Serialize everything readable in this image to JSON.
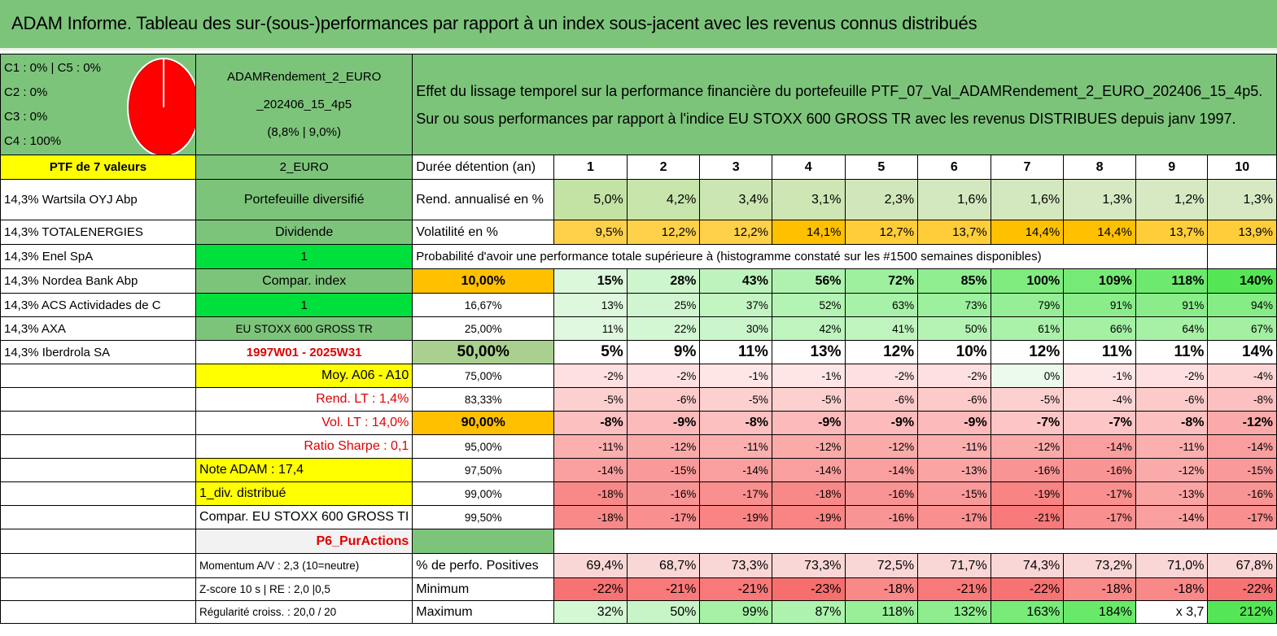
{
  "title": "ADAM Informe. Tableau des sur-(sous-)performances par rapport à un index sous-jacent avec les revenus connus distribués",
  "pie_legend": [
    "C1 : 0% | C5 : 0%",
    "C2 : 0%",
    "C3 : 0%",
    "C4 : 100%"
  ],
  "fund": {
    "name_line1": "ADAMRendement_2_EURO",
    "name_line2": "_202406_15_4p5",
    "name_line3": "(8,8% | 9,0%)"
  },
  "description": {
    "line1": "Effet du lissage temporel sur la performance financière du portefeuille PTF_07_Val_ADAMRendement_2_EURO_202406_15_4p5.",
    "line2": "Sur ou sous performances par rapport à l'indice EU STOXX 600 GROSS TR avec les revenus DISTRIBUES depuis janv 1997."
  },
  "ptf_header": "PTF de 7 valeurs",
  "currency": "2_EURO",
  "holdings": [
    "14,3% Wartsila OYJ Abp",
    "14,3% TOTALENERGIES",
    "14,3% Enel SpA",
    "14,3% Nordea Bank Abp",
    "14,3% ACS Actividades de C",
    "14,3% AXA",
    "14,3% Iberdrola SA"
  ],
  "col2": {
    "portefeuille": "Portefeuille diversifié",
    "dividende": "Dividende",
    "one_a": "1",
    "compar_index": "Compar. index",
    "one_b": "1",
    "index_name": "EU STOXX 600 GROSS TR",
    "period": "1997W01 - 2025W31",
    "moy": "Moy. A06 - A10",
    "rend_lt": "Rend. LT : 1,4%",
    "vol_lt": "Vol. LT : 14,0%",
    "sharpe": "Ratio Sharpe : 0,1",
    "note": "Note ADAM : 17,4",
    "div": "1_div. distribué",
    "compar": "Compar. EU STOXX 600 GROSS TI",
    "p6": "P6_PurActions",
    "momentum": "Momentum A/V : 2,3 (10=neutre)",
    "zscore": "Z-score 10 s | RE : 2,0 |0,5",
    "regularite": "Régularité croiss. : 20,0 / 20"
  },
  "duration_label": "Durée détention (an)",
  "durations": [
    "1",
    "2",
    "3",
    "4",
    "5",
    "6",
    "7",
    "8",
    "9",
    "10"
  ],
  "rend_label": "Rend. annualisé en %",
  "rend": [
    "5,0%",
    "4,2%",
    "3,4%",
    "3,1%",
    "2,3%",
    "1,6%",
    "1,6%",
    "1,3%",
    "1,2%",
    "1,3%"
  ],
  "vol_label": "Volatilité en %",
  "vol": [
    "9,5%",
    "12,2%",
    "12,2%",
    "14,1%",
    "12,7%",
    "13,7%",
    "14,4%",
    "14,4%",
    "13,7%",
    "13,9%"
  ],
  "prob_label": "Probabilité d'avoir une performance totale supérieure à (histogramme constaté sur les #1500 semaines disponibles)",
  "quantiles": [
    {
      "p": "10,00%",
      "v": [
        "15%",
        "28%",
        "43%",
        "56%",
        "72%",
        "85%",
        "100%",
        "109%",
        "118%",
        "140%"
      ]
    },
    {
      "p": "16,67%",
      "v": [
        "13%",
        "25%",
        "37%",
        "52%",
        "63%",
        "73%",
        "79%",
        "91%",
        "91%",
        "94%"
      ]
    },
    {
      "p": "25,00%",
      "v": [
        "11%",
        "22%",
        "30%",
        "42%",
        "41%",
        "50%",
        "61%",
        "66%",
        "64%",
        "67%"
      ]
    },
    {
      "p": "50,00%",
      "v": [
        "5%",
        "9%",
        "11%",
        "13%",
        "12%",
        "10%",
        "12%",
        "11%",
        "11%",
        "14%"
      ]
    },
    {
      "p": "75,00%",
      "v": [
        "-2%",
        "-2%",
        "-1%",
        "-1%",
        "-2%",
        "-2%",
        "0%",
        "-1%",
        "-2%",
        "-4%"
      ]
    },
    {
      "p": "83,33%",
      "v": [
        "-5%",
        "-6%",
        "-5%",
        "-5%",
        "-6%",
        "-6%",
        "-5%",
        "-4%",
        "-6%",
        "-8%"
      ]
    },
    {
      "p": "90,00%",
      "v": [
        "-8%",
        "-9%",
        "-8%",
        "-9%",
        "-9%",
        "-9%",
        "-7%",
        "-7%",
        "-8%",
        "-12%"
      ]
    },
    {
      "p": "95,00%",
      "v": [
        "-11%",
        "-12%",
        "-11%",
        "-12%",
        "-12%",
        "-11%",
        "-12%",
        "-14%",
        "-11%",
        "-14%"
      ]
    },
    {
      "p": "97,50%",
      "v": [
        "-14%",
        "-15%",
        "-14%",
        "-14%",
        "-14%",
        "-13%",
        "-16%",
        "-16%",
        "-12%",
        "-15%"
      ]
    },
    {
      "p": "99,00%",
      "v": [
        "-18%",
        "-16%",
        "-17%",
        "-18%",
        "-16%",
        "-15%",
        "-19%",
        "-17%",
        "-13%",
        "-16%"
      ]
    },
    {
      "p": "99,50%",
      "v": [
        "-18%",
        "-17%",
        "-19%",
        "-19%",
        "-16%",
        "-17%",
        "-21%",
        "-17%",
        "-14%",
        "-17%"
      ]
    }
  ],
  "pos_label": "% de perfo. Positives",
  "pos": [
    "69,4%",
    "68,7%",
    "73,3%",
    "73,3%",
    "72,5%",
    "71,7%",
    "74,3%",
    "73,2%",
    "71,0%",
    "67,8%"
  ],
  "min_label": "Minimum",
  "min": [
    "-22%",
    "-21%",
    "-21%",
    "-23%",
    "-18%",
    "-21%",
    "-22%",
    "-18%",
    "-18%",
    "-22%"
  ],
  "max_label": "Maximum",
  "max": [
    "32%",
    "50%",
    "99%",
    "87%",
    "118%",
    "132%",
    "163%",
    "184%",
    "x 3,7",
    "212%"
  ]
}
